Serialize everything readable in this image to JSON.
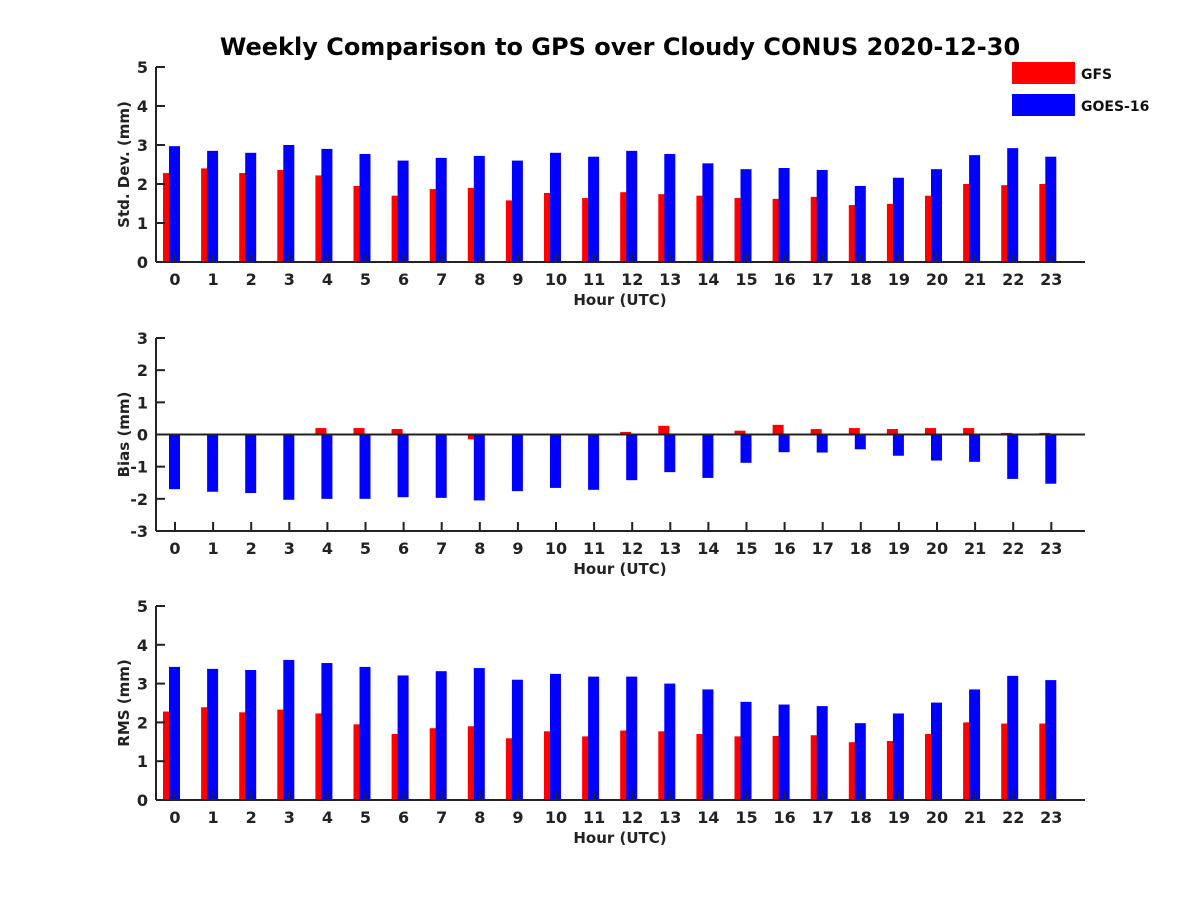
{
  "title": "Weekly Comparison to GPS over Cloudy CONUS 2020-12-30",
  "legend": [
    {
      "name": "GFS",
      "color": "#ff0000"
    },
    {
      "name": "GOES-16",
      "color": "#0000ff"
    }
  ],
  "chart_data": [
    {
      "type": "bar",
      "xlabel": "Hour (UTC)",
      "ylabel": "Std. Dev. (mm)",
      "ylim": [
        0,
        5
      ],
      "yticks": [
        "0",
        "1",
        "2",
        "3",
        "4",
        "5"
      ],
      "categories": [
        "0",
        "1",
        "2",
        "3",
        "4",
        "5",
        "6",
        "7",
        "8",
        "9",
        "10",
        "11",
        "12",
        "13",
        "14",
        "15",
        "16",
        "17",
        "18",
        "19",
        "20",
        "21",
        "22",
        "23"
      ],
      "series": [
        {
          "name": "GFS",
          "color": "#ff0000",
          "values": [
            2.28,
            2.4,
            2.28,
            2.36,
            2.22,
            1.95,
            1.7,
            1.87,
            1.9,
            1.58,
            1.77,
            1.64,
            1.79,
            1.74,
            1.7,
            1.64,
            1.62,
            1.67,
            1.46,
            1.49,
            1.7,
            2.0,
            1.97,
            2.0
          ]
        },
        {
          "name": "GOES-16",
          "color": "#0000ff",
          "values": [
            2.97,
            2.85,
            2.8,
            3.0,
            2.9,
            2.77,
            2.6,
            2.67,
            2.72,
            2.6,
            2.8,
            2.7,
            2.85,
            2.77,
            2.53,
            2.38,
            2.41,
            2.36,
            1.95,
            2.16,
            2.38,
            2.74,
            2.92,
            2.7
          ]
        }
      ]
    },
    {
      "type": "bar",
      "xlabel": "Hour (UTC)",
      "ylabel": "Bias (mm)",
      "ylim": [
        -3,
        3
      ],
      "yticks": [
        "-3",
        "-2",
        "-1",
        "0",
        "1",
        "2",
        "3"
      ],
      "categories": [
        "0",
        "1",
        "2",
        "3",
        "4",
        "5",
        "6",
        "7",
        "8",
        "9",
        "10",
        "11",
        "12",
        "13",
        "14",
        "15",
        "16",
        "17",
        "18",
        "19",
        "20",
        "21",
        "22",
        "23"
      ],
      "series": [
        {
          "name": "GFS",
          "color": "#ff0000",
          "values": [
            0.0,
            -0.02,
            0.0,
            0.0,
            0.2,
            0.2,
            0.17,
            0.0,
            -0.15,
            0.0,
            0.02,
            -0.03,
            0.08,
            0.27,
            -0.03,
            0.12,
            0.3,
            0.17,
            0.2,
            0.17,
            0.2,
            0.2,
            0.05,
            0.05
          ]
        },
        {
          "name": "GOES-16",
          "color": "#0000ff",
          "values": [
            -1.7,
            -1.78,
            -1.82,
            -2.03,
            -2.0,
            -2.0,
            -1.95,
            -1.97,
            -2.05,
            -1.76,
            -1.66,
            -1.72,
            -1.42,
            -1.17,
            -1.35,
            -0.88,
            -0.55,
            -0.56,
            -0.46,
            -0.66,
            -0.81,
            -0.85,
            -1.38,
            -1.53
          ]
        }
      ]
    },
    {
      "type": "bar",
      "xlabel": "Hour (UTC)",
      "ylabel": "RMS (mm)",
      "ylim": [
        0,
        5
      ],
      "yticks": [
        "0",
        "1",
        "2",
        "3",
        "4",
        "5"
      ],
      "categories": [
        "0",
        "1",
        "2",
        "3",
        "4",
        "5",
        "6",
        "7",
        "8",
        "9",
        "10",
        "11",
        "12",
        "13",
        "14",
        "15",
        "16",
        "17",
        "18",
        "19",
        "20",
        "21",
        "22",
        "23"
      ],
      "series": [
        {
          "name": "GFS",
          "color": "#ff0000",
          "values": [
            2.28,
            2.39,
            2.26,
            2.33,
            2.23,
            1.95,
            1.7,
            1.85,
            1.9,
            1.59,
            1.77,
            1.64,
            1.79,
            1.77,
            1.7,
            1.64,
            1.65,
            1.67,
            1.49,
            1.52,
            1.7,
            2.0,
            1.97,
            1.97
          ]
        },
        {
          "name": "GOES-16",
          "color": "#0000ff",
          "values": [
            3.43,
            3.38,
            3.35,
            3.61,
            3.53,
            3.43,
            3.21,
            3.32,
            3.4,
            3.1,
            3.25,
            3.18,
            3.18,
            3.0,
            2.85,
            2.53,
            2.46,
            2.42,
            1.98,
            2.23,
            2.51,
            2.85,
            3.2,
            3.09
          ]
        }
      ]
    }
  ]
}
